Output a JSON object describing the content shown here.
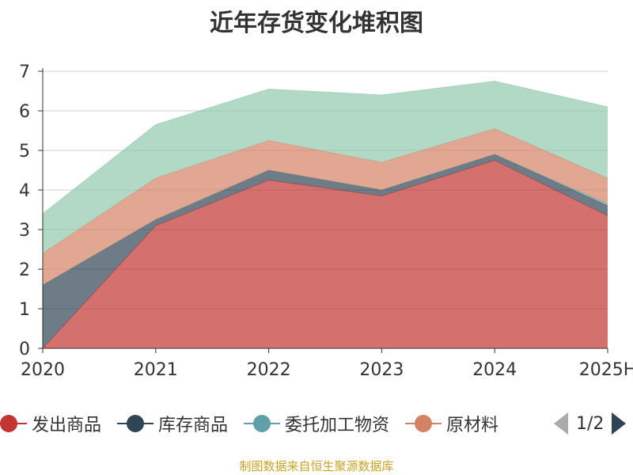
{
  "chart_data": {
    "type": "area",
    "stacked": true,
    "title": "近年存货变化堆积图",
    "categories": [
      "2020",
      "2021",
      "2022",
      "2023",
      "2024",
      "2025H"
    ],
    "ylim": [
      0,
      7
    ],
    "yticks": [
      0,
      1,
      2,
      3,
      4,
      5,
      6,
      7
    ],
    "grid": true,
    "legend_position": "bottom",
    "series": [
      {
        "name": "发出商品",
        "values": [
          0.0,
          3.1,
          4.25,
          3.85,
          4.75,
          3.35
        ],
        "color": "#c23531"
      },
      {
        "name": "库存商品",
        "values": [
          1.6,
          0.15,
          0.25,
          0.15,
          0.15,
          0.25
        ],
        "color": "#2f4554"
      },
      {
        "name": "委托加工物资",
        "values": [
          0.0,
          0.0,
          0.0,
          0.0,
          0.0,
          0.05
        ],
        "color": "#61a0a8"
      },
      {
        "name": "原材料",
        "values": [
          0.8,
          1.05,
          0.75,
          0.7,
          0.65,
          0.65
        ],
        "color": "#d48265"
      },
      {
        "name": "",
        "values": [
          1.0,
          1.35,
          1.3,
          1.7,
          1.2,
          1.8
        ],
        "color": "#91c7ae"
      }
    ]
  },
  "legend": {
    "page_text": "1/2"
  },
  "footer": {
    "source": "制图数据来自恒生聚源数据库"
  }
}
